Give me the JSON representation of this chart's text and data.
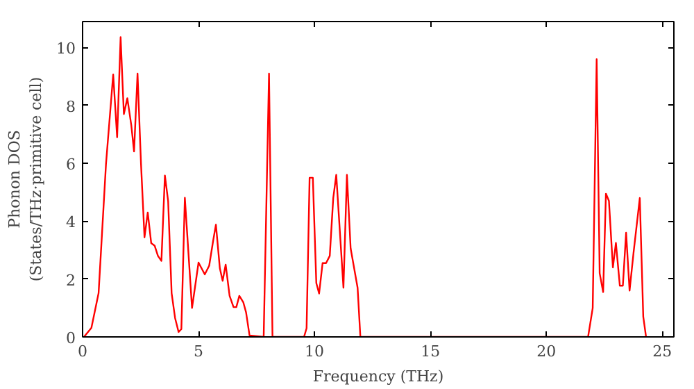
{
  "chart_data": {
    "type": "line",
    "xlabel": "Frequency (THz)",
    "ylabel": "Phonon DOS\n(States/THz·primitive cell)",
    "x": [
      0.06,
      0.38,
      0.69,
      1.01,
      1.32,
      1.49,
      1.64,
      1.78,
      1.93,
      2.1,
      2.22,
      2.37,
      2.52,
      2.67,
      2.81,
      2.96,
      3.11,
      3.25,
      3.4,
      3.55,
      3.69,
      3.84,
      3.99,
      4.14,
      4.26,
      4.41,
      4.72,
      5.0,
      5.27,
      5.46,
      5.63,
      5.75,
      5.92,
      6.04,
      6.17,
      6.34,
      6.51,
      6.63,
      6.76,
      6.93,
      7.05,
      7.2,
      7.81,
      8.04,
      8.19,
      9.55,
      9.66,
      9.79,
      9.93,
      10.08,
      10.2,
      10.35,
      10.5,
      10.66,
      10.81,
      10.94,
      11.25,
      11.4,
      11.56,
      11.86,
      11.98,
      21.8,
      22.0,
      22.17,
      22.3,
      22.45,
      22.57,
      22.7,
      22.87,
      23.0,
      23.17,
      23.3,
      23.44,
      23.59,
      23.76,
      24.03,
      24.18,
      24.3
    ],
    "series": [
      {
        "color": "#ff0000",
        "values": [
          0,
          0.31,
          1.51,
          5.98,
          9.07,
          6.9,
          10.36,
          7.7,
          8.25,
          7.32,
          6.41,
          9.1,
          5.98,
          3.44,
          4.3,
          3.24,
          3.15,
          2.8,
          2.63,
          5.58,
          4.69,
          1.51,
          0.65,
          0.17,
          0.27,
          4.81,
          1.0,
          2.57,
          2.16,
          2.46,
          3.32,
          3.88,
          2.37,
          1.94,
          2.5,
          1.42,
          1.03,
          1.03,
          1.42,
          1.2,
          0.85,
          0.05,
          0,
          9.1,
          0,
          0,
          0.3,
          5.5,
          5.5,
          1.86,
          1.5,
          2.55,
          2.55,
          2.8,
          4.8,
          5.6,
          1.7,
          5.6,
          3.06,
          1.7,
          0,
          0,
          1.0,
          9.6,
          2.2,
          1.55,
          4.95,
          4.7,
          2.4,
          3.25,
          1.77,
          1.77,
          3.6,
          1.6,
          2.9,
          4.8,
          0.7,
          0
        ]
      }
    ],
    "xlim": [
      0,
      25.5
    ],
    "ylim": [
      0,
      10.9
    ],
    "xticks": [
      0,
      5,
      10,
      15,
      20,
      25
    ],
    "yticks": [
      0,
      2,
      4,
      6,
      8,
      10
    ],
    "grid": false,
    "marker": "none",
    "line_style": "solid"
  }
}
